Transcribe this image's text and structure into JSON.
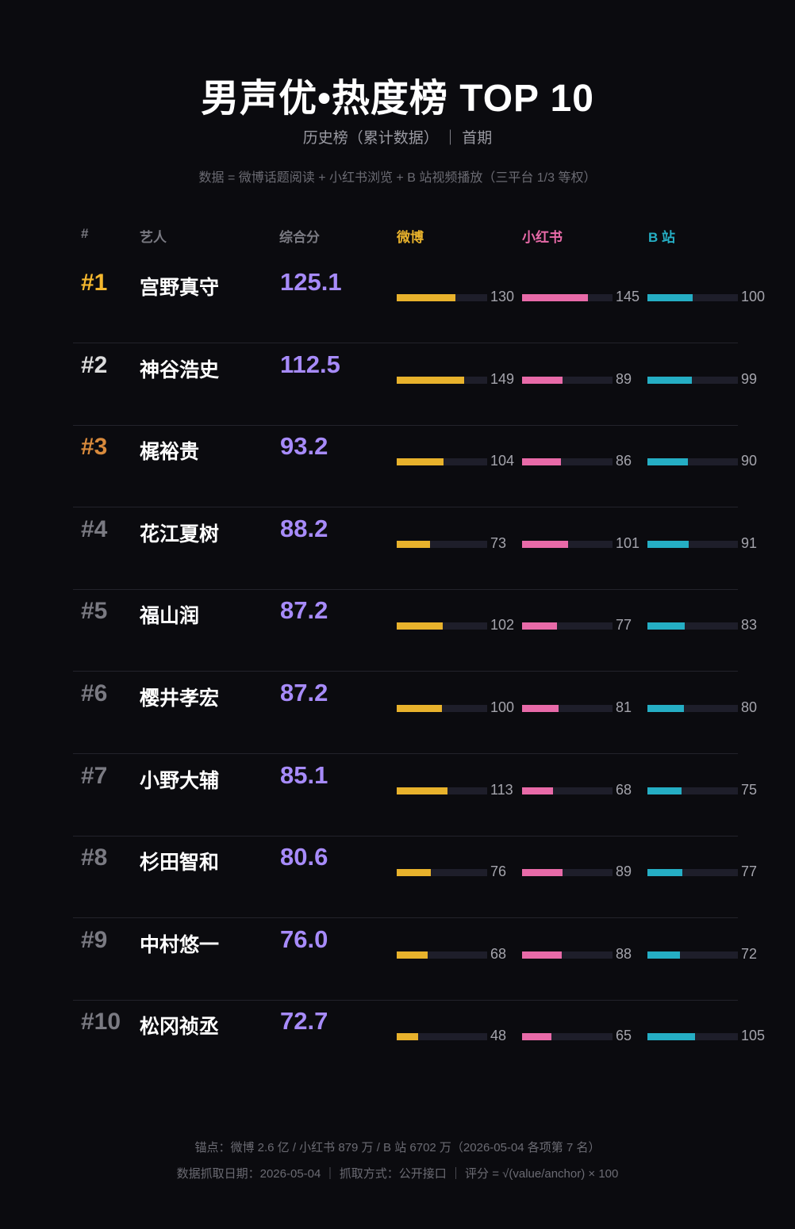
{
  "header": {
    "title": "男声优•热度榜 TOP 10",
    "subtitle": "历史榜（累计数据） ｜ 首期",
    "formula": "数据 = 微博话题阅读 + 小红书浏览 + B 站视频播放（三平台 1/3 等权）"
  },
  "columns": {
    "rank": "#",
    "artist": "艺人",
    "score": "综合分",
    "weibo": "微博",
    "xhs": "小红书",
    "bili": "B 站"
  },
  "colors": {
    "weibo": "#e8b22c",
    "xhs": "#e86aa8",
    "bili": "#25aec4",
    "score": "#a78bfa",
    "rank_gold": "#f5b82e",
    "rank_bronze": "#d88a3c",
    "rank_white": "#dcdcdc",
    "rank_gray": "#7a7a82"
  },
  "chart_data": {
    "type": "table",
    "bar_scale_max": 200,
    "rows": [
      {
        "rank": "#1",
        "name": "宫野真守",
        "score": "125.1",
        "weibo": 130,
        "xhs": 145,
        "bili": 100
      },
      {
        "rank": "#2",
        "name": "神谷浩史",
        "score": "112.5",
        "weibo": 149,
        "xhs": 89,
        "bili": 99
      },
      {
        "rank": "#3",
        "name": "梶裕贵",
        "score": "93.2",
        "weibo": 104,
        "xhs": 86,
        "bili": 90
      },
      {
        "rank": "#4",
        "name": "花江夏树",
        "score": "88.2",
        "weibo": 73,
        "xhs": 101,
        "bili": 91
      },
      {
        "rank": "#5",
        "name": "福山润",
        "score": "87.2",
        "weibo": 102,
        "xhs": 77,
        "bili": 83
      },
      {
        "rank": "#6",
        "name": "樱井孝宏",
        "score": "87.2",
        "weibo": 100,
        "xhs": 81,
        "bili": 80
      },
      {
        "rank": "#7",
        "name": "小野大辅",
        "score": "85.1",
        "weibo": 113,
        "xhs": 68,
        "bili": 75
      },
      {
        "rank": "#8",
        "name": "杉田智和",
        "score": "80.6",
        "weibo": 76,
        "xhs": 89,
        "bili": 77
      },
      {
        "rank": "#9",
        "name": "中村悠一",
        "score": "76.0",
        "weibo": 68,
        "xhs": 88,
        "bili": 72
      },
      {
        "rank": "#10",
        "name": "松冈祯丞",
        "score": "72.7",
        "weibo": 48,
        "xhs": 65,
        "bili": 105
      }
    ]
  },
  "footer": {
    "anchor": "锚点：微博 2.6 亿 / 小红书 879 万 / B 站 6702 万（2026-05-04 各项第 7 名）",
    "meta": "数据抓取日期：2026-05-04 ｜ 抓取方式：公开接口 ｜ 评分 = √(value/anchor) × 100"
  }
}
